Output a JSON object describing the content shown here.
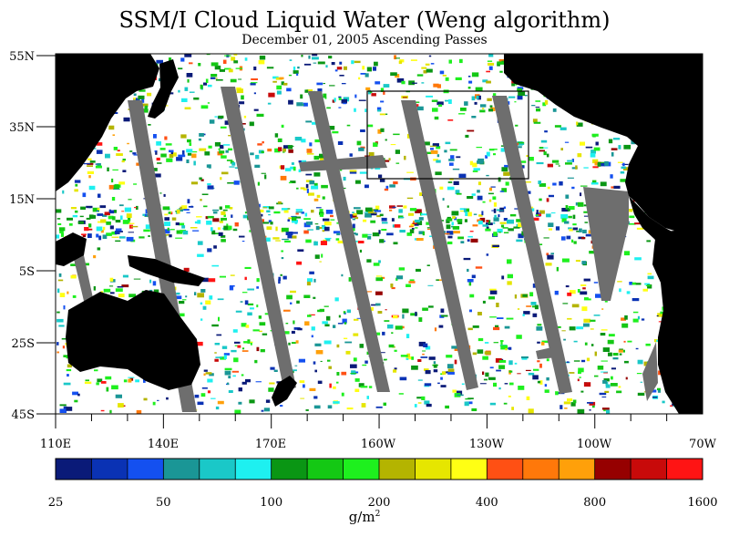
{
  "title": "SSM/I Cloud Liquid Water (Weng algorithm)",
  "subtitle": "December 01, 2005  Ascending Passes",
  "map": {
    "lat_labels": [
      "55N",
      "35N",
      "15N",
      "5S",
      "25S",
      "45S"
    ],
    "lon_labels": [
      "110E",
      "140E",
      "170E",
      "160W",
      "130W",
      "100W",
      "70W"
    ],
    "colors": {
      "land": "#000000",
      "no_data": "#6e6e6e",
      "ocean_clear": "#ffffff"
    }
  },
  "colorbar": {
    "colors": [
      "#0a1a78",
      "#0a32b4",
      "#1450f0",
      "#1a9696",
      "#1ac8c8",
      "#1ef0f0",
      "#0a9614",
      "#14c814",
      "#1ef01e",
      "#b4b400",
      "#e6e600",
      "#ffff14",
      "#ff5014",
      "#ff780a",
      "#ffa00a",
      "#960000",
      "#c80a0a",
      "#ff1414"
    ],
    "tick_labels": [
      "25",
      "50",
      "100",
      "200",
      "400",
      "800",
      "1600"
    ],
    "unit_base": "g/m",
    "unit_sup": "2"
  }
}
